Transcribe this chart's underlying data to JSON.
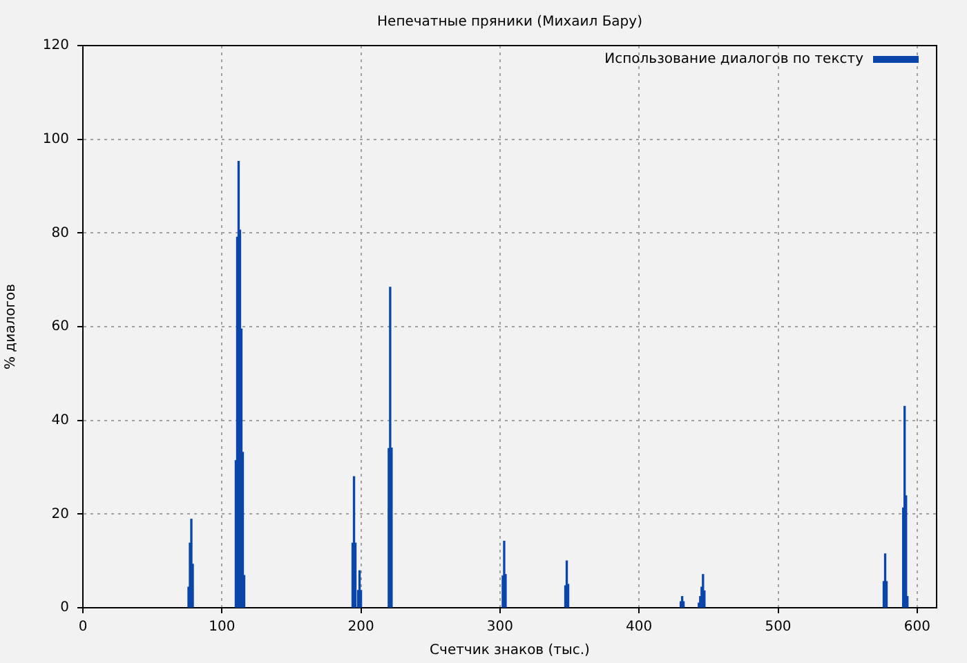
{
  "chart_data": {
    "type": "bar",
    "title": "Непечатные пряники (Михаил Бару)",
    "xlabel": "Счетчик знаков (тыс.)",
    "ylabel": "% диалогов",
    "x": [
      76,
      77,
      78,
      79,
      110,
      111,
      112,
      113,
      114,
      115,
      116,
      194,
      195,
      196,
      198,
      199,
      200,
      220,
      221,
      222,
      302,
      303,
      304,
      347,
      348,
      349,
      430,
      431,
      432,
      443,
      444,
      445,
      446,
      447,
      576,
      577,
      578,
      590,
      591,
      592,
      593
    ],
    "series": [
      {
        "name": "Использование диалогов по тексту",
        "color": "#0a46aa",
        "values": [
          4.4,
          13.8,
          18.9,
          9.3,
          31.4,
          79.1,
          95.3,
          80.6,
          59.5,
          33.2,
          6.9,
          13.8,
          28,
          13.8,
          3.7,
          7.9,
          3.7,
          34,
          68.4,
          34.1,
          6.8,
          14.2,
          7.1,
          4.7,
          10,
          5,
          1.3,
          2.4,
          1.3,
          1,
          2.4,
          4.4,
          7.1,
          3.6,
          5.6,
          11.5,
          5.6,
          21.3,
          43,
          23.9,
          2.4
        ]
      }
    ],
    "xlim": [
      0,
      614
    ],
    "ylim": [
      0,
      120
    ],
    "xticks": [
      0,
      100,
      200,
      300,
      400,
      500,
      600
    ],
    "yticks": [
      0,
      20,
      40,
      60,
      80,
      100,
      120
    ],
    "grid": true,
    "legend": "top right"
  }
}
